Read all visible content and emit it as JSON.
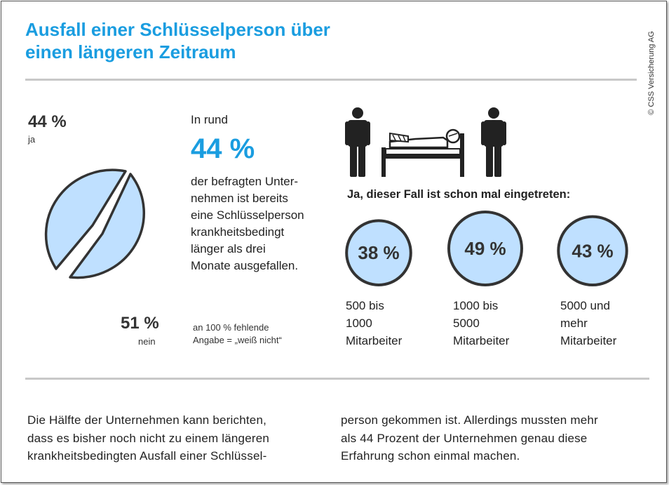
{
  "title_line1": "Ausfall einer Schlüsselperson über",
  "title_line2": "einen längeren Zeitraum",
  "copyright": "© CSS Versicherung AG",
  "colors": {
    "accent": "#1a9de0",
    "fill": "#bfe0ff",
    "stroke": "#333333",
    "rule": "#c8c8c8"
  },
  "pie_labels": {
    "yes_pct": "44 %",
    "yes_label": "ja",
    "no_pct": "51 %",
    "no_label": "nein"
  },
  "summary": {
    "lead": "In rund",
    "big": "44 %",
    "lines": [
      "der befragten Unter-",
      "nehmen ist bereits",
      "eine Schlüsselperson",
      "krankheitsbedingt",
      "länger als drei",
      "Monate ausgefallen."
    ]
  },
  "footnote": {
    "line1": "an 100 % fehlende",
    "line2": "Angabe = „weiß nicht“"
  },
  "icons": {
    "person": "person-icon",
    "bed": "patient-in-bed-icon"
  },
  "right_heading": "Ja, dieser Fall ist schon mal eingetreten:",
  "circles": [
    {
      "value": "38 %",
      "label_lines": [
        "500 bis",
        "1000",
        "Mitarbeiter"
      ]
    },
    {
      "value": "49 %",
      "label_lines": [
        "1000 bis",
        "5000",
        "Mitarbeiter"
      ]
    },
    {
      "value": "43 %",
      "label_lines": [
        "5000 und",
        "mehr",
        "Mitarbeiter"
      ]
    }
  ],
  "paragraph": {
    "col1": [
      "Die Hälfte der Unternehmen kann berichten,",
      "dass es bisher noch nicht zu einem längeren",
      "krankheitsbedingten Ausfall einer Schlüssel-"
    ],
    "col2": [
      "person gekommen ist. Allerdings mussten mehr",
      "als 44 Prozent der Unternehmen genau diese",
      "Erfahrung schon einmal machen."
    ]
  },
  "chart_data": [
    {
      "type": "pie",
      "categories": [
        "ja",
        "nein"
      ],
      "values": [
        44,
        51
      ]
    },
    {
      "type": "bar",
      "categories": [
        "500 bis 1000 Mitarbeiter",
        "1000 bis 5000 Mitarbeiter",
        "5000 und mehr Mitarbeiter"
      ],
      "values": [
        38,
        49,
        43
      ]
    }
  ]
}
